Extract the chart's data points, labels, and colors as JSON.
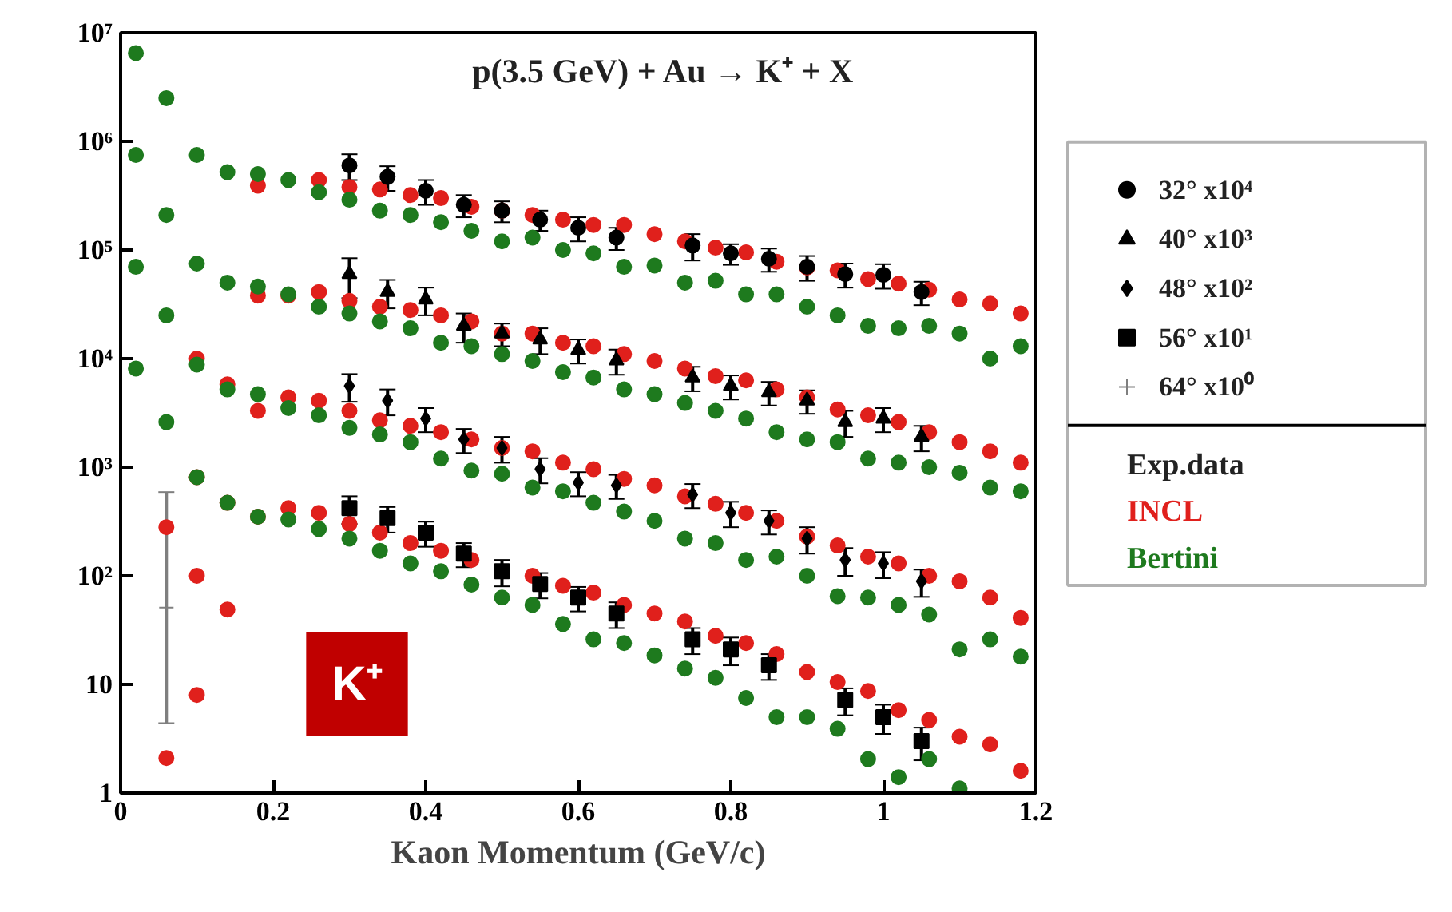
{
  "chart_data": {
    "type": "scatter",
    "title": "p(3.5 GeV) + Au → K⁺ + X",
    "xlabel": "Kaon Momentum (GeV/c)",
    "xlim": [
      0,
      1.2
    ],
    "xticks": [
      0,
      0.2,
      0.4,
      0.6,
      0.8,
      1,
      1.2
    ],
    "ylim": [
      1,
      10000000
    ],
    "yticks": [
      1,
      10,
      {
        "value": 100,
        "label": "10²"
      },
      {
        "value": 1000,
        "label": "10³"
      },
      {
        "value": 10000,
        "label": "10⁴"
      },
      {
        "value": 100000,
        "label": "10⁵"
      },
      {
        "value": 1000000,
        "label": "10⁶"
      },
      {
        "value": 10000000,
        "label": "10⁷"
      }
    ],
    "log": true,
    "grid": false,
    "legend": "right",
    "annotations": [
      "K⁺",
      "Exp.data"
    ],
    "series": [
      {
        "name": "INCL",
        "color": "#e0201c",
        "marker": "circle",
        "x": [
          0.18,
          0.22,
          0.26,
          0.3,
          0.34,
          0.38,
          0.42,
          0.46,
          0.5,
          0.54,
          0.58,
          0.62,
          0.66,
          0.7,
          0.74,
          0.78,
          0.82,
          0.86,
          0.9,
          0.94,
          0.98,
          1.02,
          1.06,
          1.1,
          1.14,
          1.18,
          0.18,
          0.22,
          0.26,
          0.3,
          0.34,
          0.38,
          0.42,
          0.46,
          0.5,
          0.54,
          0.58,
          0.62,
          0.66,
          0.7,
          0.74,
          0.78,
          0.82,
          0.86,
          0.9,
          0.94,
          0.98,
          1.02,
          1.06,
          1.1,
          1.14,
          1.18,
          0.1,
          0.14,
          0.18,
          0.22,
          0.26,
          0.3,
          0.34,
          0.38,
          0.42,
          0.46,
          0.5,
          0.54,
          0.58,
          0.62,
          0.66,
          0.7,
          0.74,
          0.78,
          0.82,
          0.86,
          0.9,
          0.94,
          0.98,
          1.02,
          1.06,
          1.1,
          1.14,
          1.18,
          0.1,
          0.14,
          0.18,
          0.22,
          0.26,
          0.3,
          0.34,
          0.38,
          0.42,
          0.46,
          0.5,
          0.54,
          0.58,
          0.62,
          0.66,
          0.7,
          0.74,
          0.78,
          0.82,
          0.86,
          0.9,
          0.94,
          0.98,
          1.02,
          1.06,
          1.1,
          1.14,
          1.18,
          0.06,
          0.06,
          0.1,
          0.1,
          0.14
        ],
        "values": [
          390000,
          null,
          440000,
          380000,
          360000,
          320000,
          300000,
          250000,
          230000,
          210000,
          190000,
          170000,
          170000,
          140000,
          120000,
          105000,
          95000,
          78000,
          69000,
          65000,
          54000,
          49000,
          43000,
          35000,
          32000,
          26000,
          38000,
          38000,
          41000,
          34000,
          30000,
          28000,
          25000,
          22000,
          17000,
          17000,
          14000,
          13000,
          11000,
          9500,
          8100,
          6900,
          6300,
          5200,
          4400,
          3400,
          3000,
          2600,
          2100,
          1700,
          1400,
          1100,
          10000,
          5800,
          3300,
          4400,
          4100,
          3300,
          2700,
          2400,
          2100,
          1800,
          1500,
          1400,
          1100,
          960,
          780,
          680,
          540,
          460,
          380,
          320,
          230,
          190,
          150,
          130,
          100,
          89,
          63,
          41,
          810,
          470,
          350,
          420,
          380,
          300,
          250,
          200,
          170,
          140,
          null,
          100,
          81,
          70,
          54,
          45,
          38,
          28,
          24,
          19,
          13,
          10.5,
          8.7,
          5.8,
          4.7,
          3.3,
          2.8,
          1.6,
          280,
          2.1,
          100,
          8,
          49
        ]
      },
      {
        "name": "Bertini",
        "color": "#1e7a1e",
        "marker": "circle",
        "x": [
          0.02,
          0.06,
          0.1,
          0.14,
          0.18,
          0.22,
          0.26,
          0.3,
          0.34,
          0.38,
          0.42,
          0.46,
          0.5,
          0.54,
          0.58,
          0.62,
          0.66,
          0.7,
          0.74,
          0.78,
          0.82,
          0.86,
          0.9,
          0.94,
          0.98,
          1.02,
          1.06,
          1.1,
          1.14,
          1.18,
          0.02,
          0.06,
          0.1,
          0.14,
          0.18,
          0.22,
          0.26,
          0.3,
          0.34,
          0.38,
          0.42,
          0.46,
          0.5,
          0.54,
          0.58,
          0.62,
          0.66,
          0.7,
          0.74,
          0.78,
          0.82,
          0.86,
          0.9,
          0.94,
          0.98,
          1.02,
          1.06,
          1.1,
          1.14,
          1.18,
          0.02,
          0.06,
          0.1,
          0.14,
          0.18,
          0.22,
          0.26,
          0.3,
          0.34,
          0.38,
          0.42,
          0.46,
          0.5,
          0.54,
          0.58,
          0.62,
          0.66,
          0.7,
          0.74,
          0.78,
          0.82,
          0.86,
          0.9,
          0.94,
          0.98,
          1.02,
          1.06,
          1.1,
          1.14,
          1.18,
          0.02,
          0.06,
          0.1,
          0.14,
          0.18,
          0.22,
          0.26,
          0.3,
          0.34,
          0.38,
          0.42,
          0.46,
          0.5,
          0.54,
          0.58,
          0.62,
          0.66,
          0.7,
          0.74,
          0.78,
          0.82,
          0.86,
          0.9,
          0.94,
          0.98,
          1.02,
          1.06,
          1.1
        ],
        "values": [
          6500000,
          2500000,
          750000,
          520000,
          500000,
          440000,
          340000,
          290000,
          230000,
          210000,
          180000,
          150000,
          120000,
          130000,
          100000,
          93000,
          70000,
          72000,
          50000,
          52000,
          39000,
          39000,
          30000,
          25000,
          20000,
          19000,
          20000,
          17000,
          10000,
          13000,
          750000,
          210000,
          75000,
          50000,
          46000,
          39000,
          30000,
          26000,
          22000,
          19000,
          14000,
          13000,
          11000,
          9500,
          7500,
          6700,
          5200,
          4700,
          3900,
          3300,
          2800,
          2100,
          1800,
          1700,
          1200,
          1100,
          1000,
          890,
          650,
          600,
          70000,
          25000,
          8800,
          5200,
          4700,
          3500,
          3000,
          2300,
          2000,
          1700,
          1200,
          930,
          870,
          650,
          600,
          470,
          390,
          320,
          220,
          200,
          140,
          150,
          100,
          65,
          63,
          54,
          44,
          21,
          26,
          18,
          8100,
          2600,
          810,
          470,
          350,
          330,
          270,
          220,
          170,
          130,
          110,
          83,
          63,
          54,
          36,
          26,
          24,
          18.5,
          14,
          11.5,
          7.5,
          5,
          5,
          3.9,
          2.05,
          1.4,
          2.05,
          1.1
        ]
      },
      {
        "name": "32° x10⁴",
        "color": "#000000",
        "marker": "circle",
        "x": [
          0.3,
          0.35,
          0.4,
          0.45,
          0.5,
          0.55,
          0.6,
          0.65,
          0.75,
          0.8,
          0.85,
          0.9,
          0.95,
          1,
          1.05
        ],
        "values": [
          600000,
          470000,
          350000,
          260000,
          230000,
          190000,
          160000,
          130000,
          110000,
          93000,
          83000,
          70000,
          60000,
          59000,
          41000
        ],
        "errors": [
          160000,
          120000,
          90000,
          60000,
          50000,
          40000,
          40000,
          30000,
          30000,
          20000,
          20000,
          18000,
          15000,
          15000,
          10000
        ]
      },
      {
        "name": "40° x10³",
        "color": "#000000",
        "marker": "triangle",
        "x": [
          0.3,
          0.35,
          0.4,
          0.45,
          0.5,
          0.55,
          0.6,
          0.65,
          0.75,
          0.8,
          0.85,
          0.9,
          0.95,
          1,
          1.05
        ],
        "values": [
          60000,
          41000,
          35000,
          20000,
          17000,
          15000,
          12000,
          9600,
          6700,
          5600,
          4900,
          4100,
          2600,
          2800,
          1900
        ],
        "errors": [
          24000,
          12000,
          10000,
          6000,
          4000,
          4000,
          3000,
          2500,
          1700,
          1400,
          1200,
          1000,
          700,
          700,
          500
        ]
      },
      {
        "name": "48° x10²",
        "color": "#000000",
        "marker": "diamond",
        "x": [
          0.3,
          0.35,
          0.4,
          0.45,
          0.5,
          0.55,
          0.6,
          0.65,
          0.75,
          0.8,
          0.85,
          0.9,
          0.95,
          1,
          1.05
        ],
        "values": [
          5600,
          4100,
          2800,
          1800,
          1500,
          960,
          720,
          680,
          560,
          380,
          320,
          220,
          140,
          130,
          89
        ],
        "errors": [
          1600,
          1100,
          700,
          450,
          400,
          250,
          180,
          170,
          140,
          100,
          80,
          60,
          40,
          35,
          25
        ]
      },
      {
        "name": "56° x10¹",
        "color": "#000000",
        "marker": "square",
        "x": [
          0.3,
          0.35,
          0.4,
          0.45,
          0.5,
          0.55,
          0.6,
          0.65,
          0.75,
          0.8,
          0.85,
          0.95,
          1,
          1.05
        ],
        "values": [
          420,
          340,
          250,
          160,
          110,
          84,
          63,
          45,
          26,
          21,
          15,
          7.2,
          5,
          3
        ],
        "errors": [
          120,
          90,
          65,
          40,
          30,
          22,
          16,
          12,
          7,
          6,
          4,
          2,
          1.5,
          1
        ]
      },
      {
        "name": "64° x10⁰",
        "color": "#7f7f7f",
        "marker": "cross",
        "x": [
          0.06
        ],
        "values": [
          51
        ],
        "errors": [
          [
            4.4,
            590
          ]
        ]
      }
    ]
  }
}
